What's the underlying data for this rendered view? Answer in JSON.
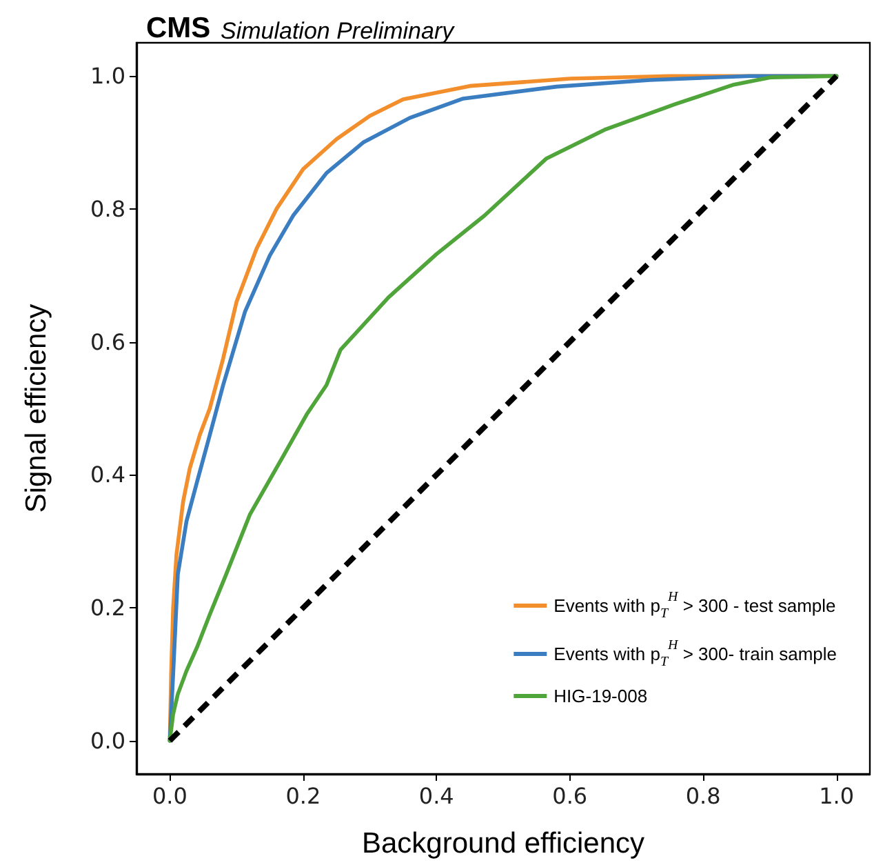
{
  "chart_data": {
    "type": "line",
    "title": "CMS",
    "subtitle": "Simulation Preliminary",
    "xlabel": "Background efficiency",
    "ylabel": "Signal efficiency",
    "xlim": [
      -0.05,
      1.05
    ],
    "ylim": [
      -0.05,
      1.05
    ],
    "xticks": [
      {
        "value": 0,
        "label": "0.0"
      },
      {
        "value": 0.2,
        "label": "0.2"
      },
      {
        "value": 0.4,
        "label": "0.4"
      },
      {
        "value": 0.6,
        "label": "0.6"
      },
      {
        "value": 0.8,
        "label": "0.8"
      },
      {
        "value": 1,
        "label": "1.0"
      }
    ],
    "yticks": [
      {
        "value": 0,
        "label": "0.0"
      },
      {
        "value": 0.2,
        "label": "0.2"
      },
      {
        "value": 0.4,
        "label": "0.4"
      },
      {
        "value": 0.6,
        "label": "0.6"
      },
      {
        "value": 0.8,
        "label": "0.8"
      },
      {
        "value": 1,
        "label": "1.0"
      }
    ],
    "grid": false,
    "legend": "bottom right",
    "marker": "none",
    "series": [
      {
        "name": "Events with p$_{T}$$^{H}$ > 300 - test sample",
        "color": "#f28e2b",
        "x": [
          0,
          0.002,
          0.005,
          0.01,
          0.02,
          0.03,
          0.045,
          0.06,
          0.08,
          0.1,
          0.13,
          0.16,
          0.2,
          0.25,
          0.3,
          0.35,
          0.45,
          0.6,
          0.75,
          1
        ],
        "values": [
          0,
          0.1,
          0.2,
          0.28,
          0.36,
          0.41,
          0.46,
          0.5,
          0.575,
          0.66,
          0.74,
          0.8,
          0.86,
          0.905,
          0.94,
          0.965,
          0.985,
          0.996,
          1,
          1
        ]
      },
      {
        "name": "Events with p$_{T}$$^{H}$ > 300- train sample",
        "color": "#3a7dc0",
        "x": [
          0,
          0.005,
          0.012,
          0.025,
          0.041,
          0.06,
          0.08,
          0.113,
          0.15,
          0.185,
          0.235,
          0.29,
          0.36,
          0.44,
          0.58,
          0.72,
          0.87,
          1
        ],
        "values": [
          0,
          0.1,
          0.25,
          0.33,
          0.39,
          0.46,
          0.535,
          0.646,
          0.73,
          0.79,
          0.854,
          0.9,
          0.937,
          0.966,
          0.984,
          0.994,
          1,
          1
        ]
      },
      {
        "name": "HIG-19-008",
        "color": "#4fa53a",
        "x": [
          0,
          0.005,
          0.012,
          0.025,
          0.041,
          0.06,
          0.084,
          0.12,
          0.17,
          0.206,
          0.235,
          0.256,
          0.328,
          0.4,
          0.472,
          0.565,
          0.652,
          0.759,
          0.846,
          0.902,
          1
        ],
        "values": [
          0,
          0.04,
          0.07,
          0.105,
          0.141,
          0.19,
          0.249,
          0.34,
          0.428,
          0.492,
          0.535,
          0.588,
          0.667,
          0.732,
          0.79,
          0.876,
          0.919,
          0.958,
          0.987,
          0.998,
          1
        ]
      },
      {
        "color": "#000000",
        "line_style": "dashed",
        "x": [
          0,
          1
        ],
        "values": [
          0,
          1
        ]
      }
    ]
  }
}
